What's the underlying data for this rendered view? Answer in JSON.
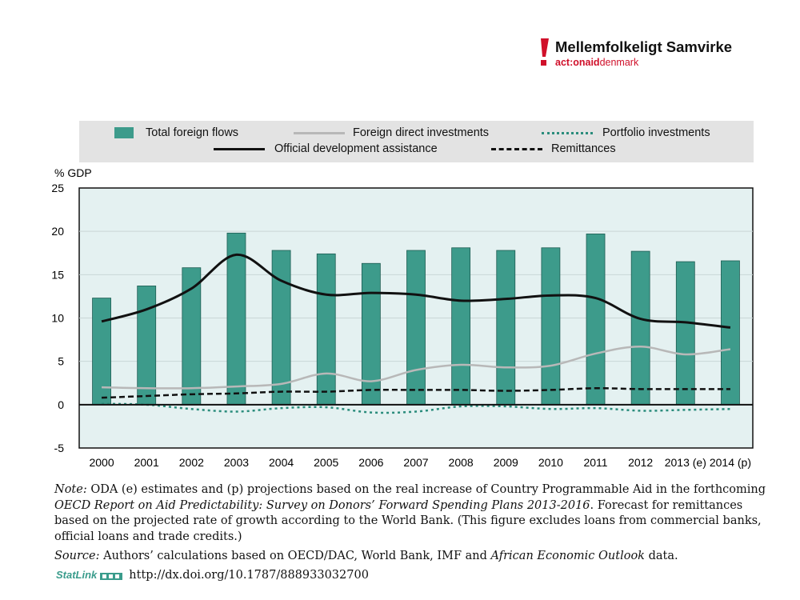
{
  "brand": {
    "name": "Mellemfolkeligt Samvirke",
    "sub_a": "act:onaid",
    "sub_b": "denmark",
    "accent": "#d0102a"
  },
  "legend": {
    "items": [
      {
        "label": "Total foreign flows",
        "style": "bar"
      },
      {
        "label": "Foreign direct investments",
        "style": "grey-line"
      },
      {
        "label": "Portfolio investments",
        "style": "teal-dotted"
      },
      {
        "label": "Official development assistance",
        "style": "black-line"
      },
      {
        "label": "Remittances",
        "style": "black-dashed"
      }
    ]
  },
  "colors": {
    "bar": "#3d9b8b",
    "plot_bg": "#e4f1f1",
    "fdi": "#b8b8b8",
    "portfolio": "#2a8c7c",
    "oda": "#111111",
    "remit": "#111111"
  },
  "chart_data": {
    "type": "bar",
    "ylabel": "% GDP",
    "ylim": [
      -5,
      25
    ],
    "yticks": [
      -5,
      0,
      5,
      10,
      15,
      20,
      25
    ],
    "categories": [
      "2000",
      "2001",
      "2002",
      "2003",
      "2004",
      "2005",
      "2006",
      "2007",
      "2008",
      "2009",
      "2010",
      "2011",
      "2012",
      "2013 (e)",
      "2014 (p)"
    ],
    "series": [
      {
        "name": "Total foreign flows",
        "kind": "bar",
        "values": [
          12.3,
          13.7,
          15.8,
          19.8,
          17.8,
          17.4,
          16.3,
          17.8,
          18.1,
          17.8,
          18.1,
          19.7,
          17.7,
          16.5,
          16.6
        ]
      },
      {
        "name": "Official development assistance",
        "kind": "line",
        "values": [
          9.6,
          11.0,
          13.4,
          17.3,
          14.3,
          12.7,
          12.9,
          12.7,
          12.0,
          12.2,
          12.6,
          12.3,
          9.9,
          9.5,
          8.9
        ]
      },
      {
        "name": "Foreign direct investments",
        "kind": "line",
        "values": [
          2.0,
          1.9,
          1.9,
          2.1,
          2.4,
          3.6,
          2.7,
          4.0,
          4.6,
          4.3,
          4.5,
          5.9,
          6.7,
          5.8,
          6.4
        ]
      },
      {
        "name": "Remittances",
        "kind": "line",
        "values": [
          0.8,
          1.0,
          1.2,
          1.3,
          1.5,
          1.5,
          1.7,
          1.7,
          1.7,
          1.6,
          1.7,
          1.9,
          1.8,
          1.8,
          1.8
        ]
      },
      {
        "name": "Portfolio investments",
        "kind": "line",
        "values": [
          0.1,
          0.0,
          -0.5,
          -0.8,
          -0.4,
          -0.3,
          -0.9,
          -0.8,
          -0.2,
          -0.2,
          -0.5,
          -0.4,
          -0.7,
          -0.6,
          -0.5
        ]
      }
    ]
  },
  "notes": {
    "note_label": "Note:",
    "note_a": " ODA (e) estimates and (p) projections based on the real increase of Country Programmable Aid in the forthcoming ",
    "note_italic": "OECD Report on Aid Predictability: Survey on Donors’ Forward Spending Plans 2013-2016",
    "note_b": ". Forecast for remittances based on the projected rate of growth according to the World Bank. (This figure excludes loans from commercial banks, official loans and trade credits.)",
    "source_label": "Source:",
    "source_a": " Authors’ calculations based on OECD/DAC, World Bank, IMF and ",
    "source_italic": "African Economic Outlook",
    "source_b": " data.",
    "statlink": "StatLink",
    "url": "http://dx.doi.org/10.1787/888933032700"
  }
}
